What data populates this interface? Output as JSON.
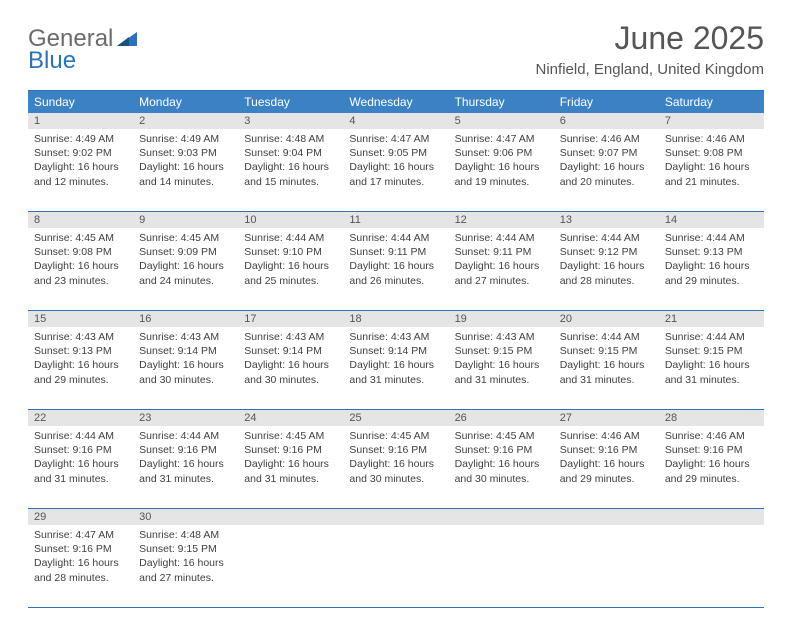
{
  "logo": {
    "text1": "General",
    "text2": "Blue"
  },
  "title": "June 2025",
  "location": "Ninfield, England, United Kingdom",
  "header_bg": "#3b82c4",
  "border_color": "#2c72b8",
  "daynum_bg": "#e5e5e5",
  "text_color": "#404040",
  "day_names": [
    "Sunday",
    "Monday",
    "Tuesday",
    "Wednesday",
    "Thursday",
    "Friday",
    "Saturday"
  ],
  "weeks": [
    [
      {
        "num": "1",
        "sr": "Sunrise: 4:49 AM",
        "ss": "Sunset: 9:02 PM",
        "d1": "Daylight: 16 hours",
        "d2": "and 12 minutes."
      },
      {
        "num": "2",
        "sr": "Sunrise: 4:49 AM",
        "ss": "Sunset: 9:03 PM",
        "d1": "Daylight: 16 hours",
        "d2": "and 14 minutes."
      },
      {
        "num": "3",
        "sr": "Sunrise: 4:48 AM",
        "ss": "Sunset: 9:04 PM",
        "d1": "Daylight: 16 hours",
        "d2": "and 15 minutes."
      },
      {
        "num": "4",
        "sr": "Sunrise: 4:47 AM",
        "ss": "Sunset: 9:05 PM",
        "d1": "Daylight: 16 hours",
        "d2": "and 17 minutes."
      },
      {
        "num": "5",
        "sr": "Sunrise: 4:47 AM",
        "ss": "Sunset: 9:06 PM",
        "d1": "Daylight: 16 hours",
        "d2": "and 19 minutes."
      },
      {
        "num": "6",
        "sr": "Sunrise: 4:46 AM",
        "ss": "Sunset: 9:07 PM",
        "d1": "Daylight: 16 hours",
        "d2": "and 20 minutes."
      },
      {
        "num": "7",
        "sr": "Sunrise: 4:46 AM",
        "ss": "Sunset: 9:08 PM",
        "d1": "Daylight: 16 hours",
        "d2": "and 21 minutes."
      }
    ],
    [
      {
        "num": "8",
        "sr": "Sunrise: 4:45 AM",
        "ss": "Sunset: 9:08 PM",
        "d1": "Daylight: 16 hours",
        "d2": "and 23 minutes."
      },
      {
        "num": "9",
        "sr": "Sunrise: 4:45 AM",
        "ss": "Sunset: 9:09 PM",
        "d1": "Daylight: 16 hours",
        "d2": "and 24 minutes."
      },
      {
        "num": "10",
        "sr": "Sunrise: 4:44 AM",
        "ss": "Sunset: 9:10 PM",
        "d1": "Daylight: 16 hours",
        "d2": "and 25 minutes."
      },
      {
        "num": "11",
        "sr": "Sunrise: 4:44 AM",
        "ss": "Sunset: 9:11 PM",
        "d1": "Daylight: 16 hours",
        "d2": "and 26 minutes."
      },
      {
        "num": "12",
        "sr": "Sunrise: 4:44 AM",
        "ss": "Sunset: 9:11 PM",
        "d1": "Daylight: 16 hours",
        "d2": "and 27 minutes."
      },
      {
        "num": "13",
        "sr": "Sunrise: 4:44 AM",
        "ss": "Sunset: 9:12 PM",
        "d1": "Daylight: 16 hours",
        "d2": "and 28 minutes."
      },
      {
        "num": "14",
        "sr": "Sunrise: 4:44 AM",
        "ss": "Sunset: 9:13 PM",
        "d1": "Daylight: 16 hours",
        "d2": "and 29 minutes."
      }
    ],
    [
      {
        "num": "15",
        "sr": "Sunrise: 4:43 AM",
        "ss": "Sunset: 9:13 PM",
        "d1": "Daylight: 16 hours",
        "d2": "and 29 minutes."
      },
      {
        "num": "16",
        "sr": "Sunrise: 4:43 AM",
        "ss": "Sunset: 9:14 PM",
        "d1": "Daylight: 16 hours",
        "d2": "and 30 minutes."
      },
      {
        "num": "17",
        "sr": "Sunrise: 4:43 AM",
        "ss": "Sunset: 9:14 PM",
        "d1": "Daylight: 16 hours",
        "d2": "and 30 minutes."
      },
      {
        "num": "18",
        "sr": "Sunrise: 4:43 AM",
        "ss": "Sunset: 9:14 PM",
        "d1": "Daylight: 16 hours",
        "d2": "and 31 minutes."
      },
      {
        "num": "19",
        "sr": "Sunrise: 4:43 AM",
        "ss": "Sunset: 9:15 PM",
        "d1": "Daylight: 16 hours",
        "d2": "and 31 minutes."
      },
      {
        "num": "20",
        "sr": "Sunrise: 4:44 AM",
        "ss": "Sunset: 9:15 PM",
        "d1": "Daylight: 16 hours",
        "d2": "and 31 minutes."
      },
      {
        "num": "21",
        "sr": "Sunrise: 4:44 AM",
        "ss": "Sunset: 9:15 PM",
        "d1": "Daylight: 16 hours",
        "d2": "and 31 minutes."
      }
    ],
    [
      {
        "num": "22",
        "sr": "Sunrise: 4:44 AM",
        "ss": "Sunset: 9:16 PM",
        "d1": "Daylight: 16 hours",
        "d2": "and 31 minutes."
      },
      {
        "num": "23",
        "sr": "Sunrise: 4:44 AM",
        "ss": "Sunset: 9:16 PM",
        "d1": "Daylight: 16 hours",
        "d2": "and 31 minutes."
      },
      {
        "num": "24",
        "sr": "Sunrise: 4:45 AM",
        "ss": "Sunset: 9:16 PM",
        "d1": "Daylight: 16 hours",
        "d2": "and 31 minutes."
      },
      {
        "num": "25",
        "sr": "Sunrise: 4:45 AM",
        "ss": "Sunset: 9:16 PM",
        "d1": "Daylight: 16 hours",
        "d2": "and 30 minutes."
      },
      {
        "num": "26",
        "sr": "Sunrise: 4:45 AM",
        "ss": "Sunset: 9:16 PM",
        "d1": "Daylight: 16 hours",
        "d2": "and 30 minutes."
      },
      {
        "num": "27",
        "sr": "Sunrise: 4:46 AM",
        "ss": "Sunset: 9:16 PM",
        "d1": "Daylight: 16 hours",
        "d2": "and 29 minutes."
      },
      {
        "num": "28",
        "sr": "Sunrise: 4:46 AM",
        "ss": "Sunset: 9:16 PM",
        "d1": "Daylight: 16 hours",
        "d2": "and 29 minutes."
      }
    ],
    [
      {
        "num": "29",
        "sr": "Sunrise: 4:47 AM",
        "ss": "Sunset: 9:16 PM",
        "d1": "Daylight: 16 hours",
        "d2": "and 28 minutes."
      },
      {
        "num": "30",
        "sr": "Sunrise: 4:48 AM",
        "ss": "Sunset: 9:15 PM",
        "d1": "Daylight: 16 hours",
        "d2": "and 27 minutes."
      },
      null,
      null,
      null,
      null,
      null
    ]
  ]
}
